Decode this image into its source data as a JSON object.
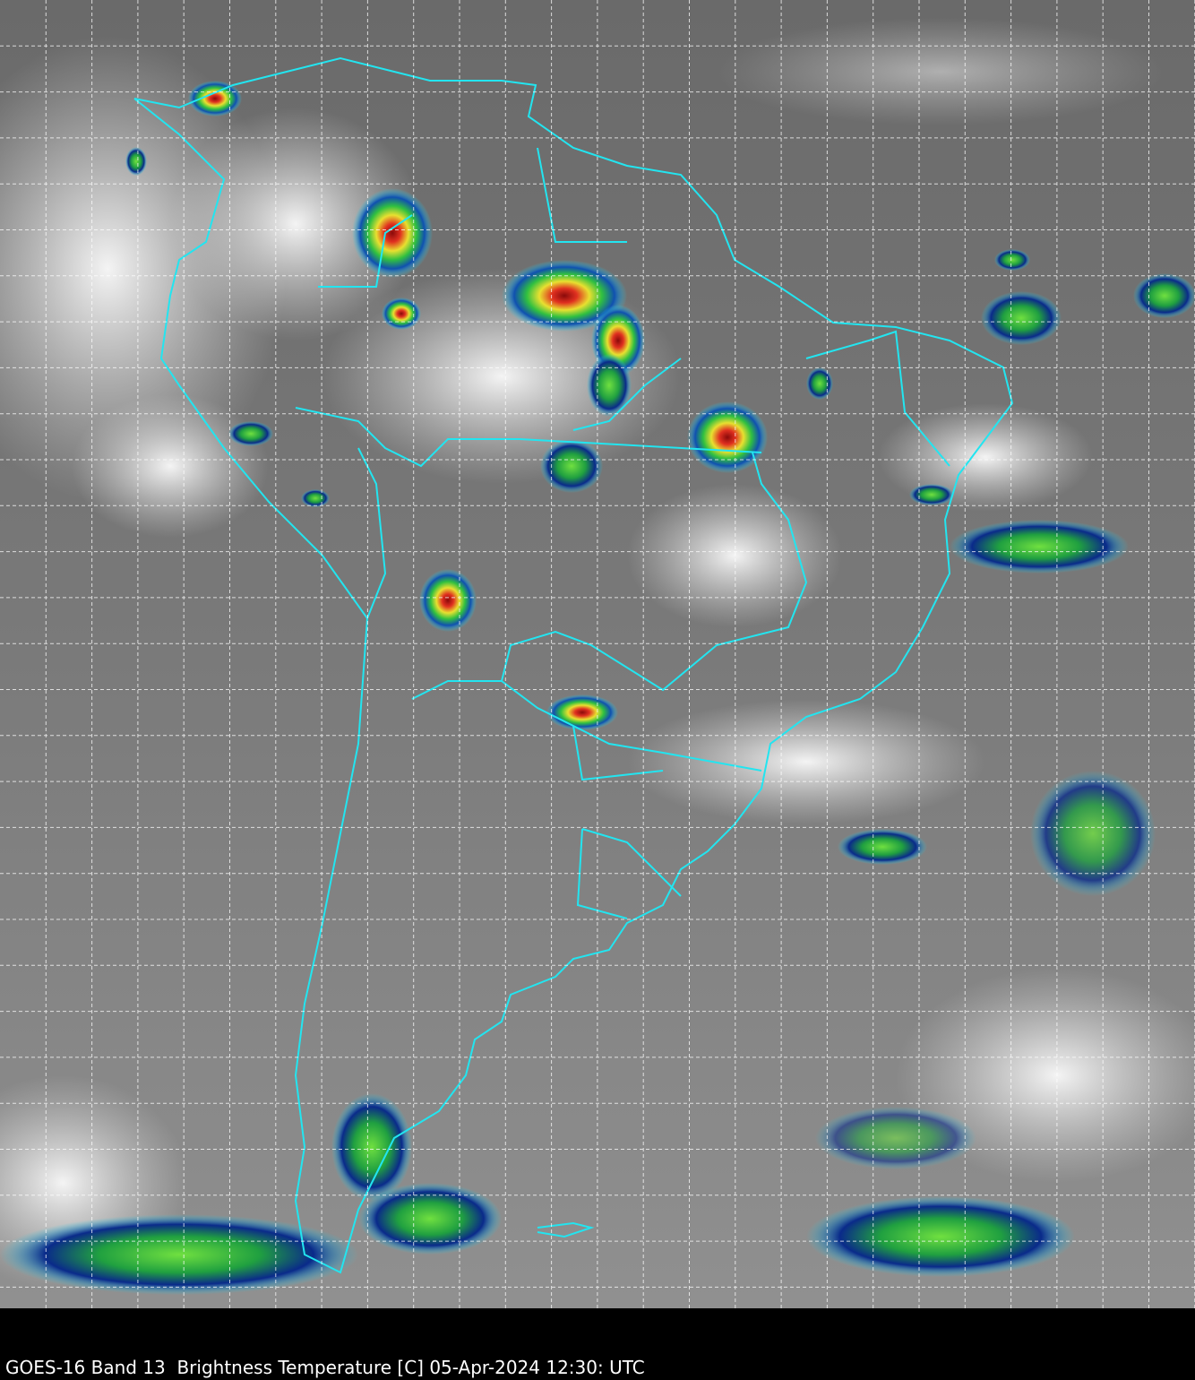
{
  "title": "GOES-16 Band 13  Brightness Temperature [C] 05-Apr-2024 12:30: UTC",
  "colors": {
    "background": "#000000",
    "coastline": "#22e5f0",
    "grid": "#ffffff",
    "cold_cloud_scale": [
      "#0a1a6e",
      "#1e6fd0",
      "#2ad0e8",
      "#30d040",
      "#e8f030",
      "#f08020",
      "#d01010",
      "#400000"
    ]
  }
}
